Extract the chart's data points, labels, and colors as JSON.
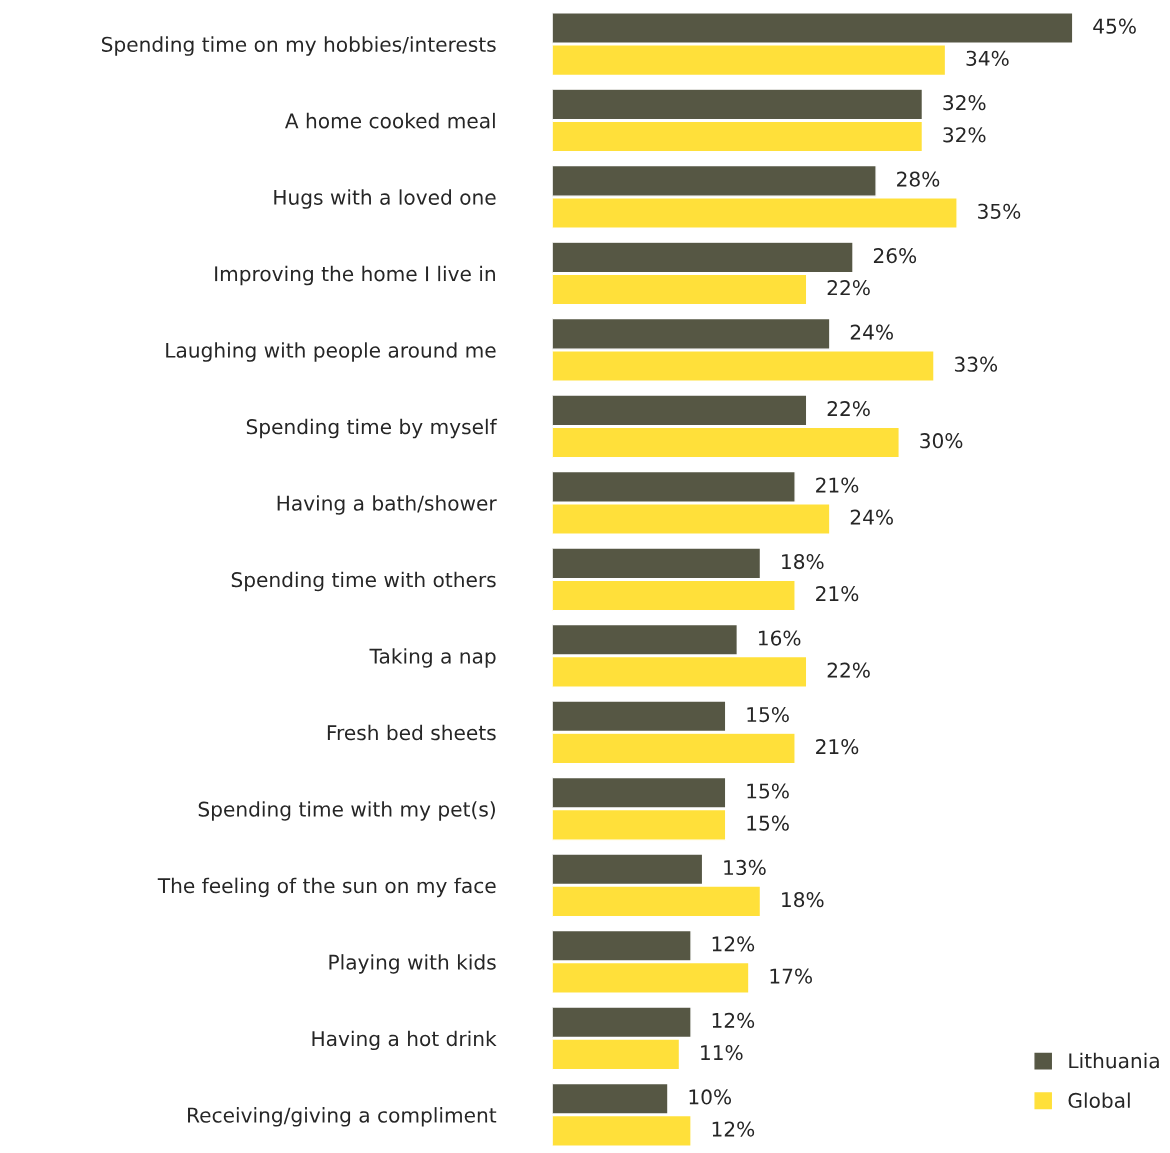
{
  "chart_data": {
    "type": "bar",
    "orientation": "horizontal",
    "legend": "bottom right",
    "categories": [
      "Spending time on my hobbies/interests",
      "A home cooked meal",
      "Hugs with a loved one",
      "Improving the home I live in",
      "Laughing with people around me",
      "Spending time by myself",
      "Having a bath/shower",
      "Spending time with others",
      "Taking a nap",
      "Fresh bed sheets",
      "Spending time with my pet(s)",
      "The feeling of the sun on my face",
      "Playing with kids",
      "Having a hot drink",
      "Receiving/giving a compliment"
    ],
    "series": [
      {
        "name": "Lithuania",
        "color": "#565744",
        "values": [
          45,
          32,
          28,
          26,
          24,
          22,
          21,
          18,
          16,
          15,
          15,
          13,
          12,
          12,
          10
        ],
        "value_labels": [
          "45%",
          "32%",
          "28%",
          "26%",
          "24%",
          "22%",
          "21%",
          "18%",
          "16%",
          "15%",
          "15%",
          "13%",
          "12%",
          "12%",
          "10%"
        ]
      },
      {
        "name": "Global",
        "color": "#ffe03a",
        "values": [
          34,
          32,
          35,
          22,
          33,
          30,
          24,
          21,
          22,
          21,
          15,
          18,
          17,
          11,
          12
        ],
        "value_labels": [
          "34%",
          "32%",
          "35%",
          "22%",
          "33%",
          "30%",
          "24%",
          "21%",
          "22%",
          "21%",
          "15%",
          "18%",
          "17%",
          "11%",
          "12%"
        ]
      }
    ]
  }
}
